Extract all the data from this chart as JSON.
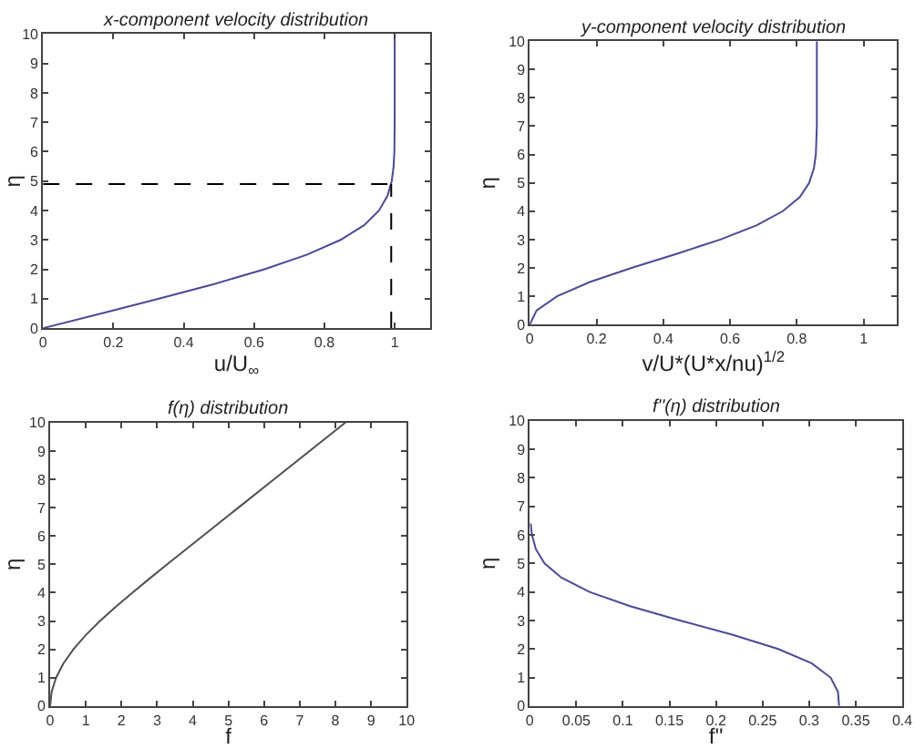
{
  "chart_data": [
    {
      "type": "line",
      "title": "x-component velocity distribution",
      "xlabel": "u/U$_{∞}$",
      "ylabel": "η",
      "x": [
        0,
        0.1659,
        0.3298,
        0.4868,
        0.6298,
        0.7513,
        0.846,
        0.913,
        0.9555,
        0.9795,
        0.9915,
        0.9969,
        0.999,
        0.9999,
        1,
        1
      ],
      "series": [
        {
          "color": "#4a4a96",
          "values": [
            0,
            0.5,
            1,
            1.5,
            2,
            2.5,
            3,
            3.5,
            4,
            4.5,
            5,
            5.5,
            6,
            7,
            8,
            10
          ]
        }
      ],
      "xlim": [
        0,
        1.1
      ],
      "ylim": [
        0,
        10
      ],
      "xticks": [
        0,
        0.2,
        0.4,
        0.6,
        0.8,
        1
      ],
      "yticks": [
        0,
        1,
        2,
        3,
        4,
        5,
        6,
        7,
        8,
        9,
        10
      ],
      "ref_lines": [
        {
          "axis": "y",
          "value": 4.9,
          "line_style": "dashed",
          "color": "#000000"
        },
        {
          "axis": "x",
          "value": 0.99,
          "line_style": "dashed",
          "color": "#000000"
        }
      ],
      "line_style": "solid",
      "marker": "none"
    },
    {
      "type": "line",
      "title": "y-component velocity distribution",
      "xlabel": "v/U*(U*x/nu)$^{1/2}$",
      "ylabel": "η",
      "x": [
        0,
        0.0207,
        0.0821,
        0.18,
        0.305,
        0.441,
        0.571,
        0.679,
        0.758,
        0.809,
        0.837,
        0.851,
        0.857,
        0.86,
        0.86,
        0.86
      ],
      "series": [
        {
          "color": "#4a4a96",
          "values": [
            0,
            0.5,
            1,
            1.5,
            2,
            2.5,
            3,
            3.5,
            4,
            4.5,
            5,
            5.5,
            6,
            7,
            8,
            10
          ]
        }
      ],
      "xlim": [
        0,
        1.1
      ],
      "ylim": [
        0,
        10
      ],
      "xticks": [
        0,
        0.2,
        0.4,
        0.6,
        0.8,
        1
      ],
      "yticks": [
        0,
        1,
        2,
        3,
        4,
        5,
        6,
        7,
        8,
        9,
        10
      ],
      "line_style": "solid",
      "marker": "none"
    },
    {
      "type": "line",
      "title": "f(η) distribution",
      "xlabel": "f",
      "ylabel": "η",
      "x": [
        0,
        0.0415,
        0.1656,
        0.3701,
        0.65,
        0.9963,
        1.3968,
        1.8377,
        2.3057,
        2.7901,
        3.2833,
        3.7806,
        4.2796,
        5.2792,
        6.2792,
        8.2792
      ],
      "series": [
        {
          "color": "#505050",
          "values": [
            0,
            0.5,
            1,
            1.5,
            2,
            2.5,
            3,
            3.5,
            4,
            4.5,
            5,
            5.5,
            6,
            7,
            8,
            10
          ]
        }
      ],
      "xlim": [
        0,
        10
      ],
      "ylim": [
        0,
        10
      ],
      "xticks": [
        0,
        1,
        2,
        3,
        4,
        5,
        6,
        7,
        8,
        9,
        10
      ],
      "yticks": [
        0,
        1,
        2,
        3,
        4,
        5,
        6,
        7,
        8,
        9,
        10
      ],
      "line_style": "solid",
      "marker": "none"
    },
    {
      "type": "line",
      "title": "f''(η) distribution",
      "xlabel": "f''",
      "ylabel": "η",
      "x": [
        0.3321,
        0.3309,
        0.323,
        0.3026,
        0.2668,
        0.2174,
        0.1614,
        0.1078,
        0.0642,
        0.034,
        0.0159,
        0.0066,
        0.0024,
        0.001
      ],
      "series": [
        {
          "color": "#4a4a96",
          "values": [
            0,
            0.5,
            1,
            1.5,
            2,
            2.5,
            3,
            3.5,
            4,
            4.5,
            5,
            5.5,
            6,
            6.4
          ]
        }
      ],
      "xlim": [
        0,
        0.4
      ],
      "ylim": [
        0,
        10
      ],
      "xticks": [
        0,
        0.05,
        0.1,
        0.15,
        0.2,
        0.25,
        0.3,
        0.35,
        0.4
      ],
      "yticks": [
        0,
        1,
        2,
        3,
        4,
        5,
        6,
        7,
        8,
        9,
        10
      ],
      "line_style": "solid",
      "marker": "none"
    }
  ]
}
